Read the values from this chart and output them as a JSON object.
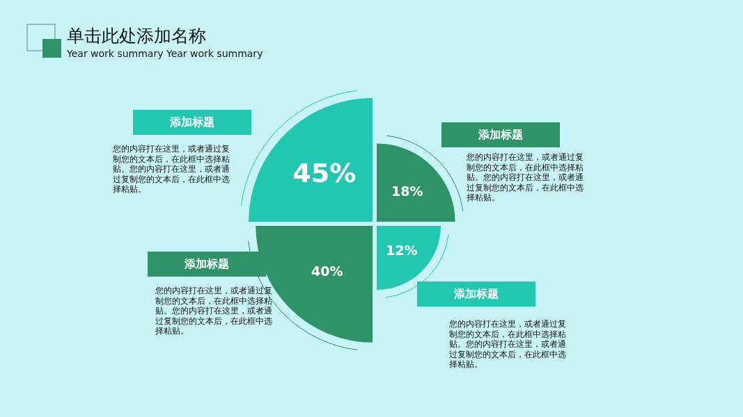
{
  "chart_data": {
    "type": "other",
    "title": "单击此处添加名称",
    "subtitle": "Year work summary Year work summary",
    "categories": [
      null,
      null,
      null,
      null
    ],
    "values": [
      45,
      18,
      12,
      40
    ],
    "colors": [
      "#21c7b0",
      "#2e9467",
      "#21c7b0",
      "#2e9467"
    ],
    "value_labels": [
      "45%",
      "18%",
      "12%",
      "40%"
    ],
    "data_labels": true,
    "annotations": [
      "添加标题",
      "您的内容打在这里，或者通过复制您的文本后，在此框中选择粘贴。您的内容打在这里，或者通过复制您的文本后，在此框中选择粘贴。",
      "添加标题",
      "您的内容打在这里，或者通过复制您的文本后，在此框中选择粘贴。您的内容打在这里，或者通过复制您的文本后，在此框中选择粘贴。",
      "添加标题",
      "您的内容打在这里，或者通过复制您的文本后，在此框中选择粘贴。您的内容打在这里，或者通过复制您的文本后，在此框中选择粘贴。",
      "添加标题",
      "您的内容打在这里，或者通过复制您的文本后，在此框中选择粘贴。您的内容打在这里，或者通过复制您的文本后，在此框中选择粘贴。"
    ]
  }
}
